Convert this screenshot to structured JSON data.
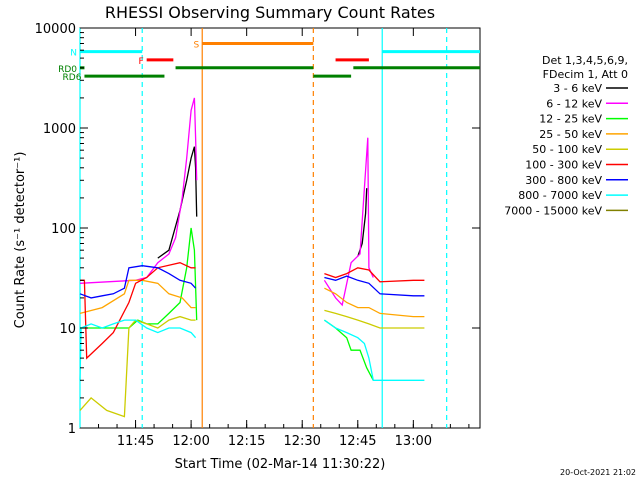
{
  "chart_data": {
    "type": "line",
    "title": "RHESSI Observing Summary Count Rates",
    "xlabel": "Start Time (02-Mar-14 11:30:22)",
    "ylabel": "Count Rate (s⁻¹ detector⁻¹)",
    "xlim": [
      11.5,
      13.3
    ],
    "ylim": [
      1,
      10000
    ],
    "yscale": "log",
    "x_ticks": [
      {
        "value": 11.75,
        "label": "11:45"
      },
      {
        "value": 12.0,
        "label": "12:00"
      },
      {
        "value": 12.25,
        "label": "12:15"
      },
      {
        "value": 12.5,
        "label": "12:30"
      },
      {
        "value": 12.75,
        "label": "12:45"
      },
      {
        "value": 13.0,
        "label": "13:00"
      }
    ],
    "y_ticks": [
      {
        "value": 1,
        "label": "1"
      },
      {
        "value": 10,
        "label": "10"
      },
      {
        "value": 100,
        "label": "100"
      },
      {
        "value": 1000,
        "label": "1000"
      },
      {
        "value": 10000,
        "label": "10000"
      }
    ],
    "legend_header": [
      "Det 1,3,4,5,6,9,",
      "FDecim 1, Att 0"
    ],
    "legend_placement": "right",
    "series": [
      {
        "name": "3 - 6 keV",
        "color": "#000000",
        "segments": [
          [
            [
              11.85,
              50
            ],
            [
              11.9,
              60
            ],
            [
              11.95,
              150
            ],
            [
              11.98,
              300
            ],
            [
              12.0,
              500
            ],
            [
              12.015,
              650
            ],
            [
              12.02,
              400
            ],
            [
              12.025,
              130
            ]
          ],
          [
            [
              12.75,
              52
            ],
            [
              12.77,
              70
            ],
            [
              12.785,
              140
            ],
            [
              12.79,
              250
            ]
          ]
        ]
      },
      {
        "name": "6 - 12 keV",
        "color": "#ff00ff",
        "segments": [
          [
            [
              11.5,
              28
            ],
            [
              11.75,
              30
            ],
            [
              11.8,
              32
            ],
            [
              11.85,
              45
            ],
            [
              11.9,
              55
            ],
            [
              11.93,
              80
            ],
            [
              11.96,
              200
            ],
            [
              11.98,
              500
            ],
            [
              12.0,
              1500
            ],
            [
              12.015,
              2000
            ],
            [
              12.02,
              800
            ],
            [
              12.025,
              300
            ]
          ],
          [
            [
              12.6,
              30
            ],
            [
              12.65,
              20
            ],
            [
              12.68,
              17
            ],
            [
              12.72,
              45
            ],
            [
              12.76,
              55
            ],
            [
              12.78,
              250
            ],
            [
              12.795,
              800
            ],
            [
              12.8,
              40
            ],
            [
              12.82,
              32
            ]
          ]
        ]
      },
      {
        "name": "12 - 25 keV",
        "color": "#00ff00",
        "segments": [
          [
            [
              11.5,
              10
            ],
            [
              11.72,
              10
            ],
            [
              11.76,
              12
            ],
            [
              11.8,
              11
            ],
            [
              11.85,
              11
            ],
            [
              11.9,
              14
            ],
            [
              11.95,
              18
            ],
            [
              11.98,
              40
            ],
            [
              12.0,
              100
            ],
            [
              12.015,
              60
            ],
            [
              12.025,
              12
            ]
          ],
          [
            [
              12.6,
              12
            ],
            [
              12.65,
              10
            ],
            [
              12.7,
              8
            ],
            [
              12.72,
              6
            ],
            [
              12.76,
              6
            ],
            [
              12.79,
              4
            ],
            [
              12.82,
              3
            ]
          ]
        ]
      },
      {
        "name": "25 - 50 keV",
        "color": "#ffa500",
        "segments": [
          [
            [
              11.5,
              14
            ],
            [
              11.6,
              16
            ],
            [
              11.7,
              22
            ],
            [
              11.72,
              30
            ],
            [
              11.78,
              30
            ],
            [
              11.85,
              28
            ],
            [
              11.9,
              22
            ],
            [
              11.96,
              20
            ],
            [
              12.0,
              16
            ],
            [
              12.02,
              16
            ]
          ],
          [
            [
              12.6,
              25
            ],
            [
              12.65,
              22
            ],
            [
              12.7,
              18
            ],
            [
              12.75,
              16
            ],
            [
              12.8,
              16
            ],
            [
              12.85,
              14
            ],
            [
              13.0,
              13
            ],
            [
              13.05,
              13
            ]
          ]
        ]
      },
      {
        "name": "50 - 100 keV",
        "color": "#cccc00",
        "segments": [
          [
            [
              11.5,
              1.5
            ],
            [
              11.55,
              2
            ],
            [
              11.62,
              1.5
            ],
            [
              11.7,
              1.3
            ],
            [
              11.72,
              10
            ],
            [
              11.75,
              12
            ],
            [
              11.8,
              11
            ],
            [
              11.85,
              10
            ],
            [
              11.9,
              12
            ],
            [
              11.95,
              13
            ],
            [
              12.0,
              12
            ],
            [
              12.02,
              12
            ]
          ],
          [
            [
              12.6,
              15
            ],
            [
              12.65,
              14
            ],
            [
              12.7,
              13
            ],
            [
              12.75,
              12
            ],
            [
              12.8,
              11
            ],
            [
              12.85,
              10
            ],
            [
              13.0,
              10
            ],
            [
              13.05,
              10
            ]
          ]
        ]
      },
      {
        "name": "100 - 300 keV",
        "color": "#ff0000",
        "segments": [
          [
            [
              11.5,
              30
            ],
            [
              11.52,
              30
            ],
            [
              11.53,
              5
            ],
            [
              11.6,
              7
            ],
            [
              11.65,
              9
            ],
            [
              11.72,
              18
            ],
            [
              11.75,
              28
            ],
            [
              11.8,
              32
            ],
            [
              11.85,
              40
            ],
            [
              11.95,
              45
            ],
            [
              12.0,
              40
            ],
            [
              12.02,
              40
            ]
          ],
          [
            [
              12.6,
              35
            ],
            [
              12.65,
              32
            ],
            [
              12.7,
              35
            ],
            [
              12.75,
              40
            ],
            [
              12.8,
              38
            ],
            [
              12.85,
              29
            ],
            [
              13.0,
              30
            ],
            [
              13.05,
              30
            ]
          ]
        ]
      },
      {
        "name": "300 - 800 keV",
        "color": "#0000ff",
        "segments": [
          [
            [
              11.5,
              22
            ],
            [
              11.55,
              20
            ],
            [
              11.6,
              21
            ],
            [
              11.65,
              22
            ],
            [
              11.7,
              25
            ],
            [
              11.72,
              40
            ],
            [
              11.78,
              42
            ],
            [
              11.85,
              40
            ],
            [
              11.9,
              35
            ],
            [
              11.95,
              30
            ],
            [
              12.0,
              28
            ],
            [
              12.02,
              25
            ]
          ],
          [
            [
              12.6,
              32
            ],
            [
              12.65,
              30
            ],
            [
              12.7,
              33
            ],
            [
              12.75,
              30
            ],
            [
              12.8,
              28
            ],
            [
              12.85,
              22
            ],
            [
              13.0,
              21
            ],
            [
              13.05,
              21
            ]
          ]
        ]
      },
      {
        "name": "800 - 7000 keV",
        "color": "#00ffff",
        "segments": [
          [
            [
              11.5,
              3
            ],
            [
              11.505,
              10
            ],
            [
              11.55,
              11
            ],
            [
              11.6,
              10
            ],
            [
              11.65,
              11
            ],
            [
              11.7,
              12
            ],
            [
              11.75,
              12
            ],
            [
              11.8,
              10
            ],
            [
              11.85,
              9
            ],
            [
              11.9,
              10
            ],
            [
              11.95,
              10
            ],
            [
              12.0,
              9
            ],
            [
              12.02,
              8
            ]
          ],
          [
            [
              12.6,
              12
            ],
            [
              12.65,
              10
            ],
            [
              12.7,
              9
            ],
            [
              12.75,
              8
            ],
            [
              12.78,
              7
            ],
            [
              12.8,
              5
            ],
            [
              12.82,
              3
            ],
            [
              12.9,
              3
            ],
            [
              13.05,
              3
            ]
          ]
        ]
      },
      {
        "name": "7000 - 15000 keV",
        "color": "#808000",
        "segments": []
      }
    ],
    "coverage_bars": [
      {
        "label": "N",
        "color": "#00ffff",
        "level": 5800,
        "ranges": [
          [
            11.5,
            11.78
          ],
          [
            12.86,
            13.3
          ]
        ]
      },
      {
        "label": "S",
        "color": "#ff8000",
        "level": 7000,
        "ranges": [
          [
            12.05,
            12.55
          ]
        ]
      },
      {
        "label": "F",
        "color": "#ff0000",
        "level": 4800,
        "ranges": [
          [
            11.8,
            11.92
          ],
          [
            12.65,
            12.8
          ]
        ]
      },
      {
        "label": "RD0",
        "color": "#008000",
        "level": 4000,
        "ranges": [
          [
            11.5,
            11.52
          ],
          [
            11.93,
            12.55
          ],
          [
            12.73,
            13.3
          ]
        ]
      },
      {
        "label": "RD6",
        "color": "#008000",
        "level": 3300,
        "ranges": [
          [
            11.52,
            11.88
          ],
          [
            12.55,
            12.72
          ]
        ]
      }
    ],
    "vertical_lines": [
      {
        "x": 11.5,
        "color": "#00ffff",
        "style": "solid"
      },
      {
        "x": 11.78,
        "color": "#00ffff",
        "style": "dashed"
      },
      {
        "x": 12.05,
        "color": "#ff8000",
        "style": "solid"
      },
      {
        "x": 12.55,
        "color": "#ff8000",
        "style": "dashed"
      },
      {
        "x": 12.86,
        "color": "#00ffff",
        "style": "solid"
      },
      {
        "x": 13.15,
        "color": "#00ffff",
        "style": "dashed"
      }
    ],
    "footer_date": "20-Oct-2021 21:02"
  }
}
